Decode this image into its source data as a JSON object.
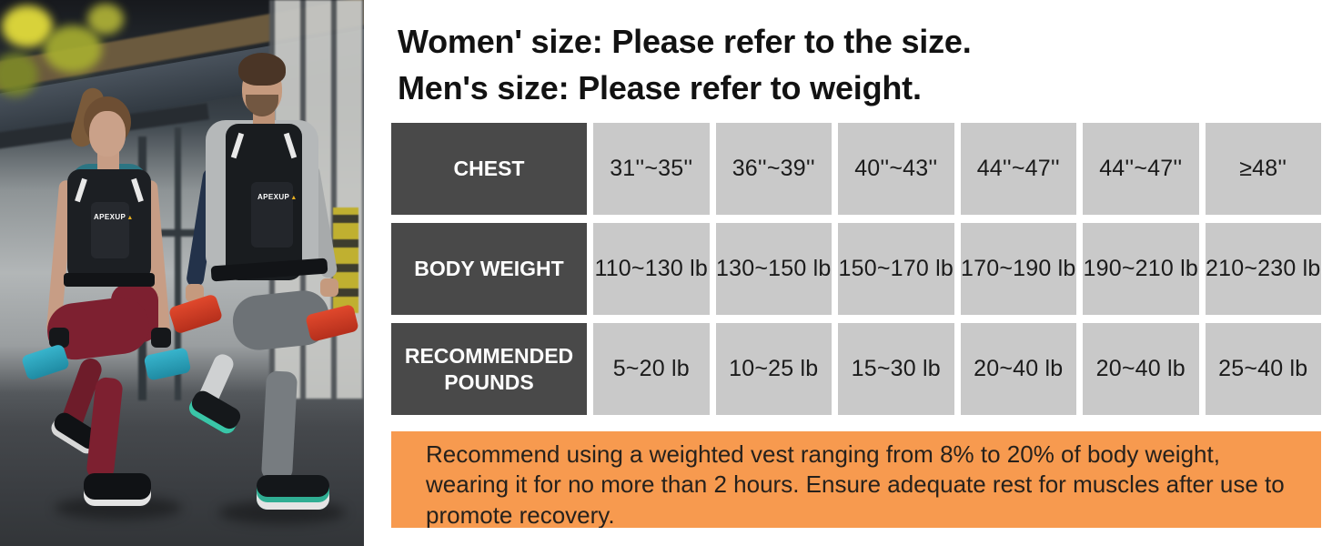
{
  "photo": {
    "brand_logo": "APEXUP",
    "description": "Woman and man wearing black APEXUP weighted vests doing lunges with dumbbells in a gym"
  },
  "title": {
    "line1": "Women' size: Please refer to the size.",
    "line2": "Men's size: Please refer to weight."
  },
  "chart_data": {
    "type": "table",
    "rows": [
      {
        "label": "CHEST",
        "values": [
          "31''~35''",
          "36''~39''",
          "40''~43''",
          "44''~47''",
          "44''~47''",
          "≥48''"
        ]
      },
      {
        "label": "BODY WEIGHT",
        "values": [
          "110~130 lb",
          "130~150 lb",
          "150~170 lb",
          "170~190 lb",
          "190~210 lb",
          "210~230 lb"
        ]
      },
      {
        "label": "RECOMMENDED POUNDS",
        "values": [
          "5~20 lb",
          "10~25 lb",
          "15~30 lb",
          "20~40 lb",
          "20~40 lb",
          "25~40 lb"
        ]
      }
    ]
  },
  "note": {
    "text": "Recommend using a weighted vest ranging from 8% to 20% of body weight, wearing it for no more than 2 hours. Ensure adequate rest for muscles after use to promote recovery."
  },
  "colors": {
    "header_cell_bg": "#494949",
    "data_cell_bg": "#c9c9c9",
    "note_bg": "#f79a4f",
    "title_text": "#121212"
  }
}
